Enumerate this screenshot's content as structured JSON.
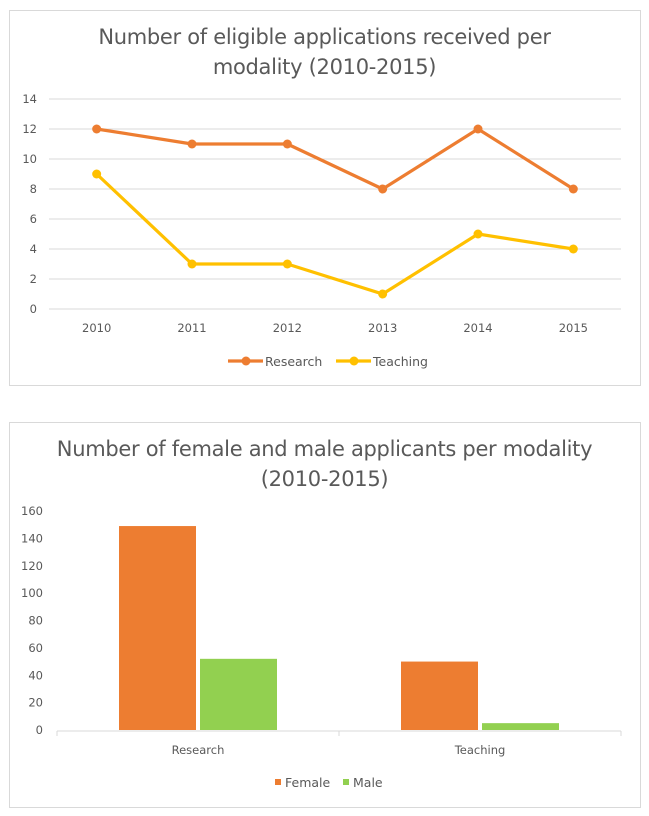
{
  "chart_data": [
    {
      "type": "line",
      "title_line1": "Number of eligible applications received per",
      "title_line2": "modality (2010-2015)",
      "title": "Number of eligible applications received per modality (2010-2015)",
      "xlabel": "",
      "ylabel": "",
      "categories": [
        "2010",
        "2011",
        "2012",
        "2013",
        "2014",
        "2015"
      ],
      "ylim": [
        0,
        14
      ],
      "yticks": [
        0,
        2,
        4,
        6,
        8,
        10,
        12,
        14
      ],
      "grid": true,
      "legend_position": "bottom",
      "series": [
        {
          "name": "Research",
          "color": "#ED7D31",
          "values": [
            12,
            11,
            11,
            8,
            12,
            8
          ]
        },
        {
          "name": "Teaching",
          "color": "#FFC000",
          "values": [
            9,
            3,
            3,
            1,
            5,
            4
          ]
        }
      ]
    },
    {
      "type": "bar",
      "title_line1": "Number of female and male applicants per modality",
      "title_line2": "(2010-2015)",
      "title": "Number of female and male applicants per modality (2010-2015)",
      "xlabel": "",
      "ylabel": "",
      "categories": [
        "Research",
        "Teaching"
      ],
      "ylim": [
        0,
        160
      ],
      "yticks": [
        0,
        20,
        40,
        60,
        80,
        100,
        120,
        140,
        160
      ],
      "grid": false,
      "legend_position": "bottom",
      "series": [
        {
          "name": "Female",
          "color": "#ED7D31",
          "values": [
            149,
            50
          ]
        },
        {
          "name": "Male",
          "color": "#92D050",
          "values": [
            52,
            5
          ]
        }
      ]
    }
  ]
}
